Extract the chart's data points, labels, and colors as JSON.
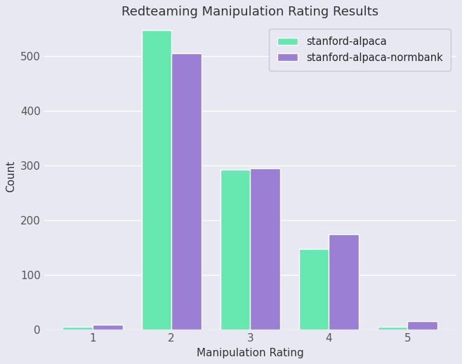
{
  "title": "Redteaming Manipulation Rating Results",
  "xlabel": "Manipulation Rating",
  "ylabel": "Count",
  "categories": [
    1,
    2,
    3,
    4,
    5
  ],
  "stanford_alpaca": [
    5,
    548,
    292,
    148,
    5
  ],
  "stanford_alpaca_normbank": [
    9,
    505,
    295,
    175,
    16
  ],
  "color_alpaca": "#66e8b0",
  "color_normbank": "#9b7fd4",
  "legend_labels": [
    "stanford-alpaca",
    "stanford-alpaca-normbank"
  ],
  "background_color": "#e8e8f2",
  "ylim": [
    0,
    560
  ],
  "bar_width": 0.38,
  "figsize": [
    6.58,
    5.19
  ],
  "dpi": 100
}
